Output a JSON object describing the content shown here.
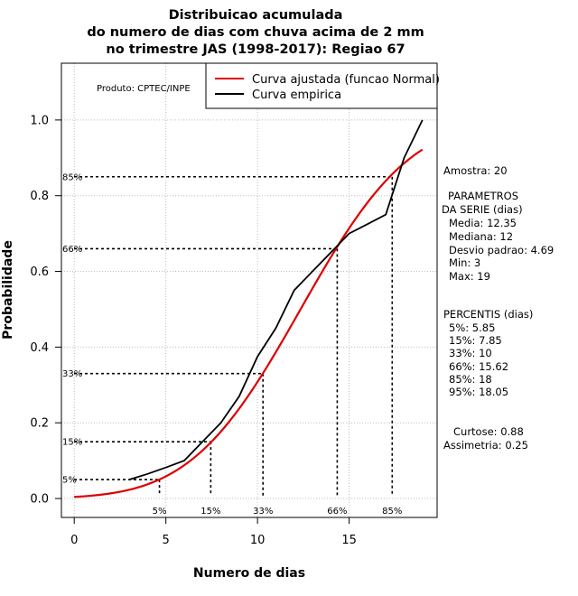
{
  "chart_data": {
    "type": "line",
    "title": [
      "Distribuicao acumulada",
      "do numero de dias com chuva acima de 2 mm",
      "no trimestre JAS (1998-2017): Regiao 67"
    ],
    "xlabel": "Numero de dias",
    "ylabel": "Probabilidade",
    "xlim": [
      -0.7,
      19.8
    ],
    "ylim": [
      -0.05,
      1.15
    ],
    "x_ticks": [
      0,
      5,
      10,
      15
    ],
    "y_ticks": [
      0.0,
      0.2,
      0.4,
      0.6,
      0.8,
      1.0
    ],
    "x_tick_labels": [
      "0",
      "5",
      "10",
      "15"
    ],
    "y_tick_labels": [
      "0.0",
      "0.2",
      "0.4",
      "0.6",
      "0.8",
      "1.0"
    ],
    "grid": true,
    "product_label": "Produto: CPTEC/INPE",
    "legend": {
      "position": "top-right",
      "entries": [
        {
          "label": "Curva ajustada (funcao Normal)",
          "color": "#dd0000"
        },
        {
          "label": "Curva empirica",
          "color": "#000000"
        }
      ]
    },
    "series": [
      {
        "name": "Curva ajustada (funcao Normal)",
        "color": "#dd0000",
        "mean": 12.35,
        "sd": 4.69,
        "x_range": [
          0,
          19
        ]
      },
      {
        "name": "Curva empirica",
        "color": "#000000",
        "x": [
          3,
          4,
          5,
          6,
          7,
          8,
          9,
          10,
          11,
          12,
          13,
          14,
          15,
          16,
          17,
          18,
          19
        ],
        "y": [
          0.05,
          0.065,
          0.082,
          0.1,
          0.15,
          0.2,
          0.27,
          0.375,
          0.45,
          0.55,
          0.6,
          0.65,
          0.7,
          0.725,
          0.75,
          0.9,
          1.0
        ]
      }
    ],
    "percentile_markers": [
      {
        "label": "5%",
        "x": 4.65,
        "y": 0.05,
        "y_label": "5%"
      },
      {
        "label": "15%",
        "x": 7.45,
        "y": 0.15,
        "y_label": "15%"
      },
      {
        "label": "33%",
        "x": 10.3,
        "y": 0.33,
        "y_label": "33%"
      },
      {
        "label": "66%",
        "x": 14.35,
        "y": 0.66,
        "y_label": "66%"
      },
      {
        "label": "85%",
        "x": 17.35,
        "y": 0.85,
        "y_label": "85%"
      }
    ]
  },
  "side_panel": {
    "amostra": "Amostra: 20",
    "params_title_1": "PARAMETROS",
    "params_title_2": "DA SERIE (dias)",
    "media": "Media: 12.35",
    "mediana": "Mediana: 12",
    "desvio": "Desvio padrao: 4.69",
    "min": "Min: 3",
    "max": "Max: 19",
    "percentis_title": "PERCENTIS (dias)",
    "p5": "5%: 5.85",
    "p15": "15%: 7.85",
    "p33": "33%: 10",
    "p66": "66%: 15.62",
    "p85": "85%: 18",
    "p95": "95%: 18.05",
    "curtose": "Curtose: 0.88",
    "assimetria": "Assimetria: 0.25"
  }
}
